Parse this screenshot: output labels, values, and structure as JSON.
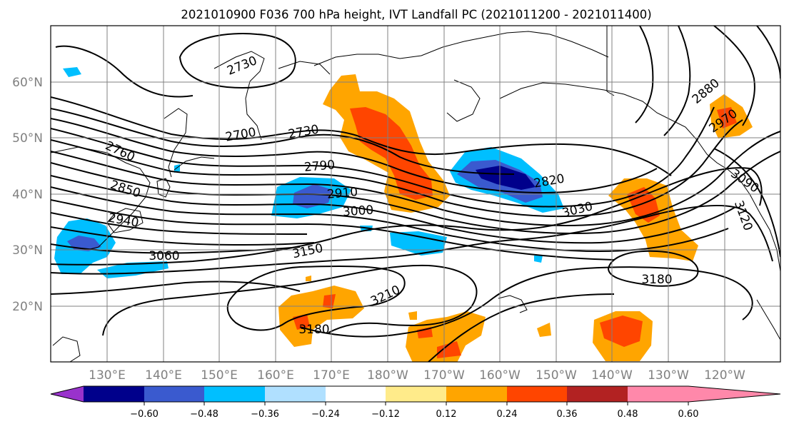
{
  "title": "2021010900 F036 700 hPa height, IVT Landfall PC (2021011200 - 2021011400)",
  "map": {
    "lat_ticks": [
      "60°N",
      "50°N",
      "40°N",
      "30°N",
      "20°N"
    ],
    "lon_ticks": [
      "130°E",
      "140°E",
      "150°E",
      "160°E",
      "170°E",
      "180°W",
      "170°W",
      "160°W",
      "150°W",
      "140°W",
      "130°W",
      "120°W"
    ],
    "contour_labels": [
      "2730",
      "2700",
      "2730",
      "2760",
      "2790",
      "2850",
      "2910",
      "2940",
      "3000",
      "3060",
      "3150",
      "3210",
      "3180",
      "2820",
      "3030",
      "2880",
      "2970",
      "3090",
      "3120",
      "3180"
    ],
    "colors": {
      "contour": "#000000",
      "coast": "#000000",
      "grid": "#808080"
    }
  },
  "colorbar": {
    "tick_labels": [
      "−0.60",
      "−0.48",
      "−0.36",
      "−0.24",
      "−0.12",
      "0.12",
      "0.24",
      "0.36",
      "0.48",
      "0.60"
    ],
    "colors": [
      "#9932cc",
      "#00008b",
      "#3a5acf",
      "#00bfff",
      "#b0e0ff",
      "#ffffff",
      "#ffeb8a",
      "#ffa500",
      "#ff4500",
      "#b22222",
      "#ff88aa"
    ]
  }
}
